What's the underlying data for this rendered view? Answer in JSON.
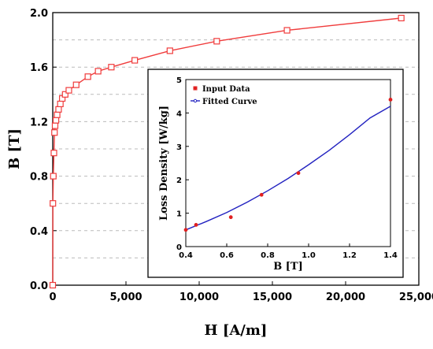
{
  "chart_data": [
    {
      "type": "line",
      "xlabel": "H [A/m]",
      "ylabel": "B [T]",
      "xlim": [
        0,
        25000
      ],
      "ylim": [
        0.0,
        2.0
      ],
      "x_ticks": [
        "0",
        "5,000",
        "10,000",
        "15,000",
        "20,000",
        "25,000"
      ],
      "y_ticks": [
        "0.0",
        "0.4",
        "0.8",
        "1.2",
        "1.6",
        "2.0"
      ],
      "grid": "dashed horizontal",
      "series": [
        {
          "color": "#f03c3c",
          "marker": "open-square",
          "x": [
            0,
            10,
            40,
            80,
            120,
            160,
            220,
            300,
            400,
            520,
            650,
            850,
            1100,
            1600,
            2400,
            3100,
            4000,
            5600,
            8000,
            11200,
            16000,
            23800
          ],
          "y": [
            0.0,
            0.6,
            0.8,
            0.97,
            1.12,
            1.17,
            1.21,
            1.25,
            1.29,
            1.33,
            1.37,
            1.4,
            1.43,
            1.47,
            1.53,
            1.57,
            1.6,
            1.65,
            1.72,
            1.79,
            1.87,
            1.96
          ]
        }
      ]
    },
    {
      "type": "line",
      "xlabel": "B [T]",
      "ylabel": "Loss Density [W/kg]",
      "xlim": [
        0.4,
        1.4
      ],
      "ylim": [
        0,
        5
      ],
      "x_ticks": [
        "0.4",
        "0.6",
        "0.8",
        "1.0",
        "1.2",
        "1.4"
      ],
      "y_ticks": [
        "0",
        "1",
        "2",
        "3",
        "4",
        "5"
      ],
      "legend": "top-left",
      "series": [
        {
          "name": "Input Data",
          "color": "#e02020",
          "marker": "dot",
          "x": [
            0.4,
            0.45,
            0.62,
            0.77,
            0.95,
            1.4
          ],
          "y": [
            0.5,
            0.65,
            0.88,
            1.55,
            2.2,
            4.4
          ]
        },
        {
          "name": "Fitted Curve",
          "color": "#2222c0",
          "marker": "line",
          "x": [
            0.4,
            0.5,
            0.6,
            0.7,
            0.8,
            0.9,
            1.0,
            1.1,
            1.2,
            1.3,
            1.4
          ],
          "y": [
            0.5,
            0.75,
            1.02,
            1.33,
            1.67,
            2.04,
            2.45,
            2.88,
            3.35,
            3.85,
            4.2
          ]
        }
      ]
    }
  ]
}
